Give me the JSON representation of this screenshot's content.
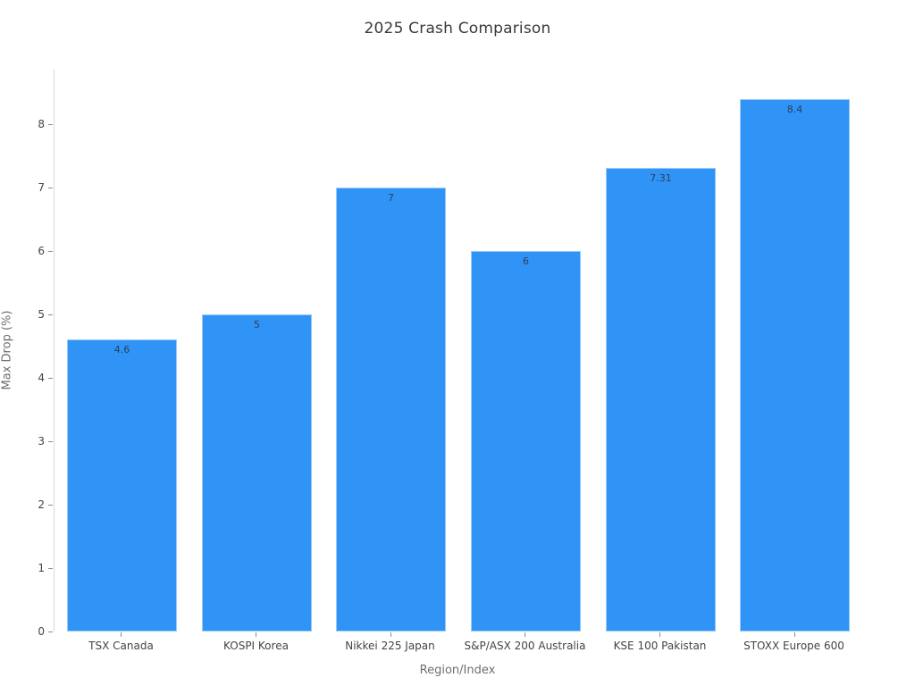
{
  "chart_data": {
    "type": "bar",
    "title": "2025 Crash Comparison",
    "categories": [
      "TSX Canada",
      "KOSPI Korea",
      "Nikkei 225 Japan",
      "S&P/ASX 200 Australia",
      "KSE 100 Pakistan",
      "STOXX Europe 600"
    ],
    "values": [
      4.6,
      5,
      7,
      6,
      7.31,
      8.4
    ],
    "value_labels": [
      "4.6",
      "5",
      "7",
      "6",
      "7.31",
      "8.4"
    ],
    "xlabel": "Region/Index",
    "ylabel": "Max Drop (%)",
    "ylim": [
      0,
      8.86
    ],
    "yticks": [
      0,
      1,
      2,
      3,
      4,
      5,
      6,
      7,
      8
    ],
    "grid": false,
    "legend_position": "none",
    "bar_color": "#2f94f6",
    "bar_value_label_color": "#2a3f5f",
    "axis_line_color": "#d9d9d9",
    "tick_label_color": "#444444",
    "axis_title_color": "#6e6e6e",
    "background_color": "#ffffff"
  }
}
